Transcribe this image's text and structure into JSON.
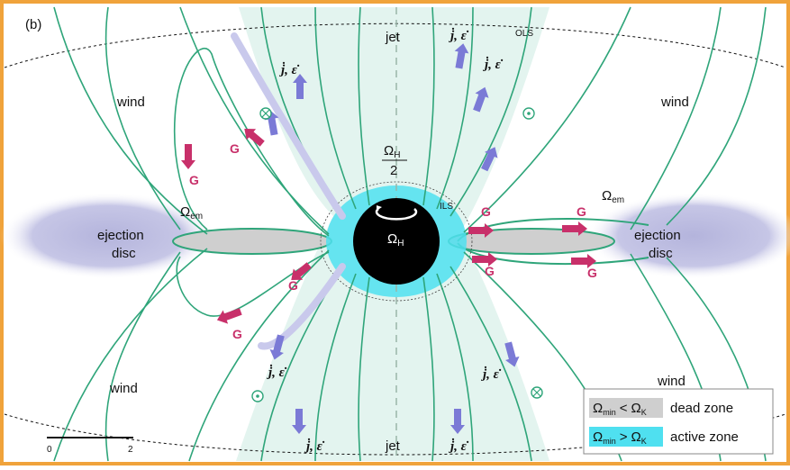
{
  "panel_label": "(b)",
  "labels": {
    "jet": "jet",
    "wind": "wind",
    "ols": "OLS",
    "ils": "ILS",
    "ejection_disc": [
      "ejection",
      "disc"
    ],
    "omega_em": "Ω",
    "omega_em_sub": "em",
    "omega_h_half_num": "Ω",
    "omega_h_half_sub": "H",
    "omega_h_half_den": "2",
    "omega_h": "Ω",
    "omega_h_sub": "H",
    "torque": "G",
    "flux": "j̇, ε̇"
  },
  "legend": {
    "dead": {
      "expr_a": "Ω",
      "sub_a": "min",
      "op": "<",
      "expr_b": "Ω",
      "sub_b": "K",
      "text": "dead zone"
    },
    "active": {
      "expr_a": "Ω",
      "sub_a": "min",
      "op": ">",
      "expr_b": "Ω",
      "sub_b": "K",
      "text": "active zone"
    }
  },
  "scale_bar": {
    "start": "0",
    "end": "2"
  },
  "colors": {
    "frame": "#f0a33b",
    "field_line": "#2fa57a",
    "jet_fill": "#e3f4ef",
    "disc_halo": "#bcbce0",
    "dead_zone": "#cfcfcf",
    "active_zone": "#4fe0f0",
    "torque_arrow": "#c8306a",
    "flux_arrow": "#7b7ad6"
  }
}
